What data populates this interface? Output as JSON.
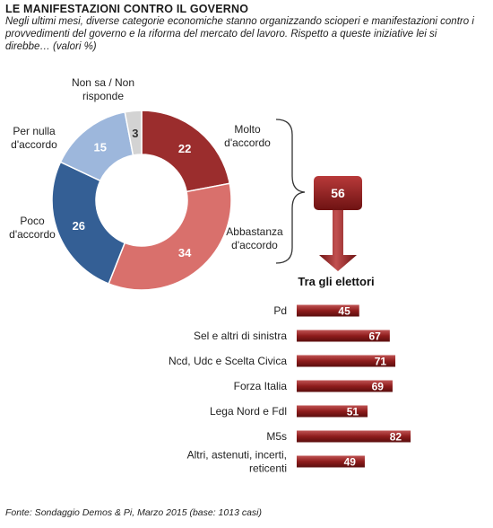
{
  "header": {
    "title": "LE MANIFESTAZIONI  CONTRO IL GOVERNO",
    "subtitle": "Negli ultimi mesi, diverse categorie economiche stanno organizzando scioperi e manifestazioni contro i provvedimenti del governo e la riforma del mercato del lavoro. Rispetto a queste iniziative lei si direbbe… (valori %)"
  },
  "source": "Fonte: Sondaggio Demos & Pi, Marzo 2015 (base: 1013 casi)",
  "chart_data": [
    {
      "type": "pie",
      "variant": "donut",
      "slices": [
        {
          "label": "Molto d'accordo",
          "label_lines": [
            "Molto",
            "d'accordo"
          ],
          "value": 22,
          "color": "#9b2d2d"
        },
        {
          "label": "Abbastanza d'accordo",
          "label_lines": [
            "Abbastanza",
            "d'accordo"
          ],
          "value": 34,
          "color": "#d9706c"
        },
        {
          "label": "Poco d'accordo",
          "label_lines": [
            "Poco",
            "d'accordo"
          ],
          "value": 26,
          "color": "#345f95"
        },
        {
          "label": "Per nulla d'accordo",
          "label_lines": [
            "Per nulla",
            "d'accordo"
          ],
          "value": 15,
          "color": "#9db7dc"
        },
        {
          "label": "Non sa / Non risponde",
          "label_lines": [
            "Non  sa / Non",
            "risponde"
          ],
          "value": 3,
          "color": "#d3d3d3"
        }
      ],
      "summary": {
        "value": 56,
        "color": "#8e1c1c"
      }
    },
    {
      "type": "bar",
      "orientation": "horizontal",
      "title": "Tra gli elettori",
      "categories": [
        "Pd",
        "Sel e altri di sinistra",
        "Ncd, Udc e Scelta Civica",
        "Forza Italia",
        "Lega Nord e Fdl",
        "M5s",
        "Altri, astenuti, incerti, reticenti"
      ],
      "category_lines": [
        [
          "Pd"
        ],
        [
          "Sel e altri di sinistra"
        ],
        [
          "Ncd, Udc e Scelta Civica"
        ],
        [
          "Forza Italia"
        ],
        [
          "Lega Nord e Fdl"
        ],
        [
          "M5s"
        ],
        [
          "Altri, astenuti, incerti,",
          "reticenti"
        ]
      ],
      "values": [
        45,
        67,
        71,
        69,
        51,
        82,
        49
      ],
      "color": "#8e1c1c"
    }
  ]
}
